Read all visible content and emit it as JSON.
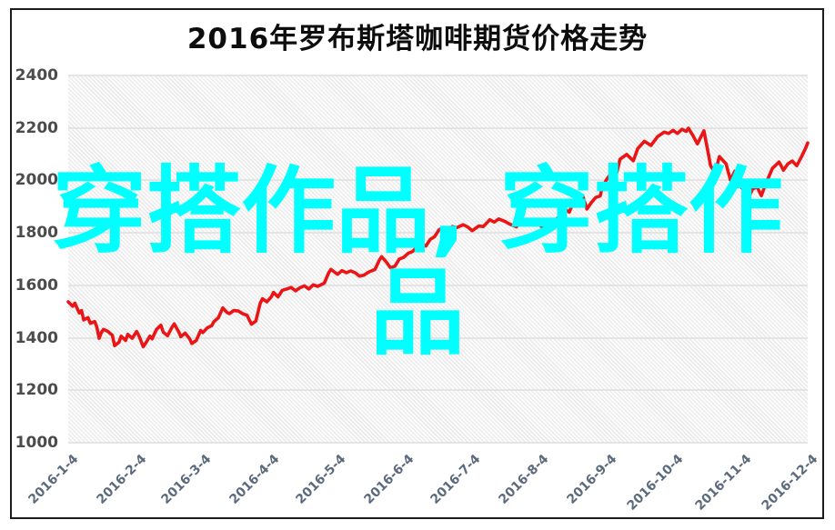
{
  "title": {
    "text": "2016年罗布斯塔咖啡期货价格走势",
    "color": "#0d0d0d"
  },
  "watermark": {
    "full_text": "穿搭作品, 穿搭作品",
    "line1": "穿搭作品, 穿搭作",
    "line2": "品",
    "color": "#00ffff"
  },
  "axes": {
    "y_label_color": "#4b4b4b",
    "x_label_color": "#5c6a7d",
    "grid_color": "#e2e2e2"
  },
  "chart_data": {
    "type": "line",
    "title": "2016年罗布斯塔咖啡期货价格走势",
    "xlabel": "",
    "ylabel": "",
    "ylim": [
      1000,
      2400
    ],
    "yticks": [
      1000,
      1200,
      1400,
      1600,
      1800,
      2000,
      2200,
      2400
    ],
    "grid": true,
    "legend": "none",
    "line_color": "#ea1517",
    "xticks": [
      {
        "label": "2016-1-4",
        "day": 4
      },
      {
        "label": "2016-2-4",
        "day": 35
      },
      {
        "label": "2016-3-4",
        "day": 64
      },
      {
        "label": "2016-4-4",
        "day": 95
      },
      {
        "label": "2016-5-4",
        "day": 125
      },
      {
        "label": "2016-6-4",
        "day": 156
      },
      {
        "label": "2016-7-4",
        "day": 186
      },
      {
        "label": "2016-8-4",
        "day": 217
      },
      {
        "label": "2016-9-4",
        "day": 248
      },
      {
        "label": "2016-10-4",
        "day": 278
      },
      {
        "label": "2016-11-4",
        "day": 309
      },
      {
        "label": "2016-12-4",
        "day": 339
      }
    ],
    "series": [
      {
        "name": "罗布斯塔咖啡期货价格",
        "x_unit": "day-of-year-2016",
        "points": [
          [
            4,
            1537
          ],
          [
            6,
            1520
          ],
          [
            7,
            1532
          ],
          [
            9,
            1495
          ],
          [
            10,
            1504
          ],
          [
            11,
            1468
          ],
          [
            13,
            1477
          ],
          [
            14,
            1455
          ],
          [
            16,
            1462
          ],
          [
            17,
            1440
          ],
          [
            18,
            1398
          ],
          [
            19,
            1420
          ],
          [
            20,
            1432
          ],
          [
            22,
            1424
          ],
          [
            24,
            1410
          ],
          [
            25,
            1370
          ],
          [
            27,
            1383
          ],
          [
            28,
            1406
          ],
          [
            30,
            1390
          ],
          [
            31,
            1413
          ],
          [
            33,
            1398
          ],
          [
            35,
            1424
          ],
          [
            36,
            1408
          ],
          [
            38,
            1366
          ],
          [
            39,
            1378
          ],
          [
            41,
            1406
          ],
          [
            42,
            1396
          ],
          [
            44,
            1432
          ],
          [
            46,
            1448
          ],
          [
            47,
            1422
          ],
          [
            49,
            1408
          ],
          [
            51,
            1440
          ],
          [
            52,
            1453
          ],
          [
            54,
            1424
          ],
          [
            55,
            1404
          ],
          [
            57,
            1418
          ],
          [
            59,
            1396
          ],
          [
            60,
            1378
          ],
          [
            62,
            1390
          ],
          [
            64,
            1428
          ],
          [
            65,
            1420
          ],
          [
            67,
            1438
          ],
          [
            69,
            1446
          ],
          [
            70,
            1462
          ],
          [
            72,
            1476
          ],
          [
            74,
            1514
          ],
          [
            76,
            1496
          ],
          [
            77,
            1492
          ],
          [
            79,
            1504
          ],
          [
            81,
            1502
          ],
          [
            83,
            1492
          ],
          [
            85,
            1486
          ],
          [
            87,
            1452
          ],
          [
            89,
            1464
          ],
          [
            91,
            1532
          ],
          [
            92,
            1549
          ],
          [
            94,
            1537
          ],
          [
            96,
            1556
          ],
          [
            97,
            1573
          ],
          [
            99,
            1556
          ],
          [
            101,
            1581
          ],
          [
            103,
            1586
          ],
          [
            105,
            1592
          ],
          [
            107,
            1579
          ],
          [
            109,
            1591
          ],
          [
            111,
            1598
          ],
          [
            113,
            1586
          ],
          [
            115,
            1602
          ],
          [
            117,
            1596
          ],
          [
            120,
            1608
          ],
          [
            122,
            1648
          ],
          [
            123,
            1661
          ],
          [
            125,
            1648
          ],
          [
            126,
            1642
          ],
          [
            128,
            1656
          ],
          [
            130,
            1648
          ],
          [
            132,
            1655
          ],
          [
            134,
            1648
          ],
          [
            136,
            1635
          ],
          [
            138,
            1639
          ],
          [
            140,
            1650
          ],
          [
            143,
            1661
          ],
          [
            145,
            1697
          ],
          [
            146,
            1709
          ],
          [
            148,
            1690
          ],
          [
            150,
            1667
          ],
          [
            152,
            1673
          ],
          [
            154,
            1700
          ],
          [
            156,
            1707
          ],
          [
            158,
            1722
          ],
          [
            160,
            1729
          ],
          [
            162,
            1746
          ],
          [
            164,
            1758
          ],
          [
            166,
            1750
          ],
          [
            168,
            1775
          ],
          [
            170,
            1786
          ],
          [
            172,
            1812
          ],
          [
            174,
            1821
          ],
          [
            176,
            1807
          ],
          [
            178,
            1824
          ],
          [
            180,
            1820
          ],
          [
            183,
            1831
          ],
          [
            185,
            1822
          ],
          [
            187,
            1808
          ],
          [
            190,
            1826
          ],
          [
            192,
            1824
          ],
          [
            195,
            1850
          ],
          [
            197,
            1841
          ],
          [
            199,
            1853
          ],
          [
            202,
            1843
          ],
          [
            204,
            1833
          ],
          [
            207,
            1823
          ],
          [
            209,
            1841
          ],
          [
            212,
            1831
          ],
          [
            214,
            1846
          ],
          [
            217,
            1836
          ],
          [
            219,
            1819
          ],
          [
            222,
            1843
          ],
          [
            224,
            1845
          ],
          [
            227,
            1865
          ],
          [
            229,
            1890
          ],
          [
            231,
            1879
          ],
          [
            233,
            1921
          ],
          [
            235,
            1937
          ],
          [
            237,
            1942
          ],
          [
            239,
            1891
          ],
          [
            241,
            1916
          ],
          [
            243,
            1935
          ],
          [
            245,
            1941
          ],
          [
            246,
            1976
          ],
          [
            248,
            2005
          ],
          [
            250,
            2027
          ],
          [
            252,
            2013
          ],
          [
            254,
            2081
          ],
          [
            257,
            2099
          ],
          [
            260,
            2075
          ],
          [
            262,
            2121
          ],
          [
            265,
            2149
          ],
          [
            268,
            2133
          ],
          [
            271,
            2167
          ],
          [
            274,
            2184
          ],
          [
            276,
            2179
          ],
          [
            278,
            2191
          ],
          [
            280,
            2179
          ],
          [
            282,
            2195
          ],
          [
            284,
            2187
          ],
          [
            285,
            2199
          ],
          [
            287,
            2171
          ],
          [
            289,
            2139
          ],
          [
            292,
            2189
          ],
          [
            294,
            2101
          ],
          [
            295,
            2056
          ],
          [
            297,
            2029
          ],
          [
            299,
            2091
          ],
          [
            302,
            2063
          ],
          [
            304,
            2001
          ],
          [
            306,
            2035
          ],
          [
            308,
            1987
          ],
          [
            310,
            1961
          ],
          [
            312,
            1931
          ],
          [
            314,
            1966
          ],
          [
            316,
            1976
          ],
          [
            318,
            1942
          ],
          [
            320,
            1987
          ],
          [
            323,
            2046
          ],
          [
            326,
            2070
          ],
          [
            328,
            2039
          ],
          [
            330,
            2063
          ],
          [
            332,
            2074
          ],
          [
            334,
            2056
          ],
          [
            336,
            2087
          ],
          [
            338,
            2122
          ],
          [
            339,
            2143
          ]
        ]
      }
    ]
  }
}
